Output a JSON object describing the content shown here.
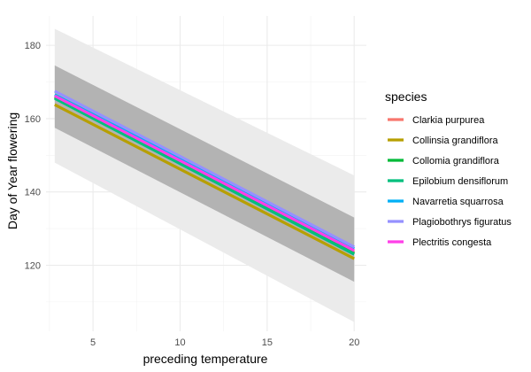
{
  "chart_data": {
    "type": "line",
    "title": "",
    "xlabel": "preceding temperature",
    "ylabel": "Day of Year flowering",
    "xlim": [
      2.3,
      20.7
    ],
    "ylim": [
      102,
      188
    ],
    "xticks": [
      5,
      10,
      15,
      20
    ],
    "yticks": [
      120,
      140,
      160,
      180
    ],
    "grid": true,
    "legend": {
      "title": "species",
      "position": "right"
    },
    "bands": [
      {
        "name": "prediction interval",
        "color": "#ebebeb",
        "x": [
          2.8,
          20.0
        ],
        "lower": [
          148.0,
          104.5
        ],
        "upper": [
          184.5,
          144.5
        ]
      },
      {
        "name": "confidence interval",
        "color": "#b3b3b3",
        "x": [
          2.8,
          20.0
        ],
        "lower": [
          157.5,
          115.5
        ],
        "upper": [
          174.5,
          133.0
        ]
      }
    ],
    "series": [
      {
        "name": "Clarkia purpurea",
        "color": "#F8766D",
        "x": [
          2.8,
          20.0
        ],
        "y": [
          166.0,
          123.5
        ]
      },
      {
        "name": "Collinsia grandiflora",
        "color": "#B79F00",
        "x": [
          2.8,
          20.0
        ],
        "y": [
          163.8,
          121.8
        ]
      },
      {
        "name": "Collomia grandiflora",
        "color": "#00BA38",
        "x": [
          2.8,
          20.0
        ],
        "y": [
          165.8,
          123.2
        ]
      },
      {
        "name": "Epilobium densiflorum",
        "color": "#00BF7D",
        "x": [
          2.8,
          20.0
        ],
        "y": [
          165.5,
          123.0
        ]
      },
      {
        "name": "Navarretia squarrosa",
        "color": "#00B0F6",
        "x": [
          2.8,
          20.0
        ],
        "y": [
          166.5,
          124.5
        ]
      },
      {
        "name": "Plagiobothrys figuratus",
        "color": "#9590FF",
        "x": [
          2.8,
          20.0
        ],
        "y": [
          167.5,
          125.0
        ]
      },
      {
        "name": "Plectritis congesta",
        "color": "#FF3FE8",
        "x": [
          2.8,
          20.0
        ],
        "y": [
          166.2,
          124.0
        ]
      }
    ]
  }
}
